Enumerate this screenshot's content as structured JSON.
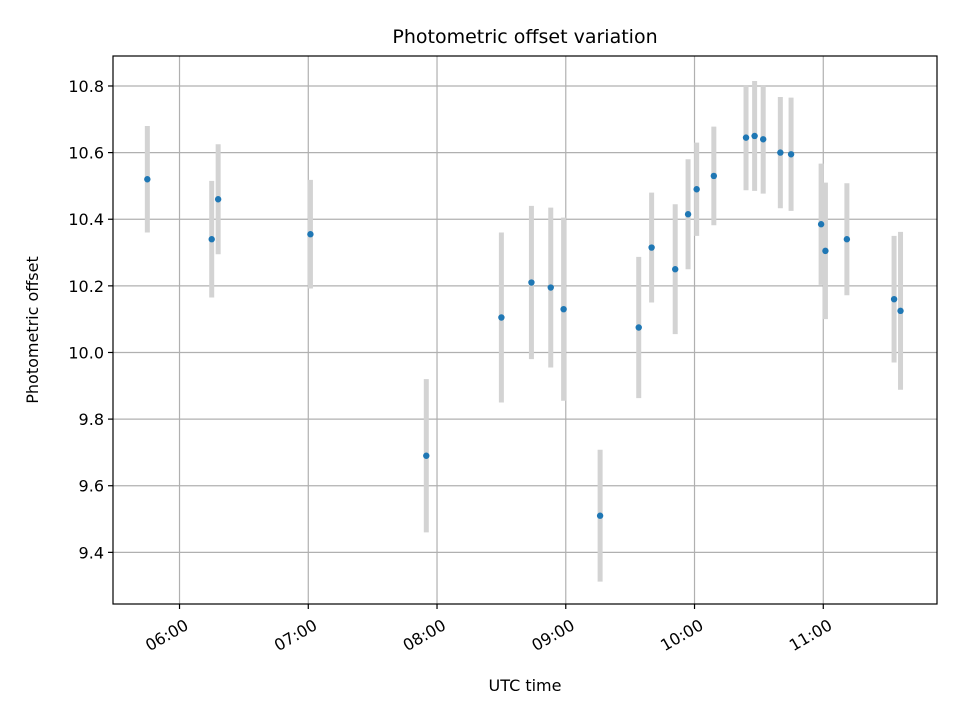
{
  "chart_data": {
    "type": "scatter",
    "title": "Photometric offset variation",
    "xlabel": "UTC time",
    "ylabel": "Photometric offset",
    "xlim": [
      "05:29",
      "11:53"
    ],
    "ylim": [
      9.245,
      10.89
    ],
    "x_ticks": [
      "06:00",
      "07:00",
      "08:00",
      "09:00",
      "10:00",
      "11:00"
    ],
    "y_ticks": [
      9.4,
      9.6,
      9.8,
      10.0,
      10.2,
      10.4,
      10.6,
      10.8
    ],
    "y_tick_labels": [
      "9.4",
      "9.6",
      "9.8",
      "10.0",
      "10.2",
      "10.4",
      "10.6",
      "10.8"
    ],
    "grid": true,
    "colors": {
      "marker": "#1f77b4",
      "errorbar": "#d3d3d3"
    },
    "points": [
      {
        "time": "05:45",
        "y": 10.52,
        "err": 0.16
      },
      {
        "time": "06:15",
        "y": 10.34,
        "err": 0.175
      },
      {
        "time": "06:18",
        "y": 10.46,
        "err": 0.165
      },
      {
        "time": "07:01",
        "y": 10.355,
        "err": 0.163
      },
      {
        "time": "07:55",
        "y": 9.69,
        "err": 0.23
      },
      {
        "time": "08:30",
        "y": 10.105,
        "err": 0.255
      },
      {
        "time": "08:44",
        "y": 10.21,
        "err": 0.23
      },
      {
        "time": "08:53",
        "y": 10.195,
        "err": 0.24
      },
      {
        "time": "08:59",
        "y": 10.13,
        "err": 0.275
      },
      {
        "time": "09:16",
        "y": 9.51,
        "err": 0.198
      },
      {
        "time": "09:34",
        "y": 10.075,
        "err": 0.212
      },
      {
        "time": "09:40",
        "y": 10.315,
        "err": 0.165
      },
      {
        "time": "09:51",
        "y": 10.25,
        "err": 0.195
      },
      {
        "time": "09:57",
        "y": 10.415,
        "err": 0.165
      },
      {
        "time": "10:01",
        "y": 10.49,
        "err": 0.14
      },
      {
        "time": "10:09",
        "y": 10.53,
        "err": 0.148
      },
      {
        "time": "10:24",
        "y": 10.645,
        "err": 0.158
      },
      {
        "time": "10:28",
        "y": 10.65,
        "err": 0.165
      },
      {
        "time": "10:32",
        "y": 10.64,
        "err": 0.163
      },
      {
        "time": "10:40",
        "y": 10.6,
        "err": 0.167
      },
      {
        "time": "10:45",
        "y": 10.595,
        "err": 0.17
      },
      {
        "time": "10:59",
        "y": 10.385,
        "err": 0.182
      },
      {
        "time": "11:01",
        "y": 10.305,
        "err": 0.205
      },
      {
        "time": "11:11",
        "y": 10.34,
        "err": 0.168
      },
      {
        "time": "11:33",
        "y": 10.16,
        "err": 0.19
      },
      {
        "time": "11:36",
        "y": 10.125,
        "err": 0.237
      }
    ]
  }
}
